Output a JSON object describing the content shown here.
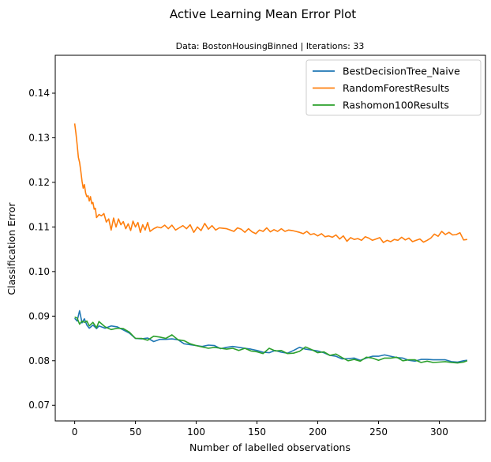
{
  "chart_data": {
    "type": "line",
    "title": "Active Learning Mean Error Plot",
    "subtitle": "Data: BostonHousingBinned | Iterations: 33",
    "xlabel": "Number of labelled observations",
    "ylabel": "Classification Error",
    "xlim": [
      -16,
      338
    ],
    "ylim": [
      0.0665,
      0.1485
    ],
    "xticks": [
      0,
      50,
      100,
      150,
      200,
      250,
      300
    ],
    "yticks": [
      0.07,
      0.08,
      0.09,
      0.1,
      0.11,
      0.12,
      0.13,
      0.14
    ],
    "ytick_labels": [
      "0.07",
      "0.08",
      "0.09",
      "0.10",
      "0.11",
      "0.12",
      "0.13",
      "0.14"
    ],
    "grid": false,
    "legend_position": "top-right",
    "series": [
      {
        "name": "BestDecisionTree_Naive",
        "color": "#1f77b4",
        "x": [
          0,
          2,
          4,
          6,
          8,
          10,
          12,
          15,
          18,
          20,
          25,
          30,
          35,
          40,
          45,
          50,
          55,
          60,
          65,
          70,
          75,
          80,
          85,
          90,
          95,
          100,
          105,
          110,
          115,
          120,
          125,
          130,
          135,
          140,
          145,
          150,
          155,
          160,
          165,
          170,
          175,
          180,
          185,
          190,
          195,
          200,
          205,
          210,
          215,
          220,
          225,
          230,
          235,
          240,
          245,
          250,
          255,
          260,
          265,
          270,
          275,
          280,
          285,
          290,
          295,
          300,
          305,
          310,
          315,
          320,
          323
        ],
        "y": [
          0.0895,
          0.0889,
          0.0912,
          0.0885,
          0.0894,
          0.088,
          0.0873,
          0.088,
          0.0872,
          0.0878,
          0.0873,
          0.0878,
          0.0876,
          0.0869,
          0.0862,
          0.085,
          0.0849,
          0.0851,
          0.0843,
          0.0848,
          0.0848,
          0.0849,
          0.0847,
          0.0838,
          0.0836,
          0.0834,
          0.0832,
          0.0835,
          0.0834,
          0.0827,
          0.083,
          0.0832,
          0.083,
          0.0828,
          0.0826,
          0.0823,
          0.0819,
          0.0818,
          0.0823,
          0.0819,
          0.0817,
          0.0823,
          0.083,
          0.0826,
          0.0824,
          0.0822,
          0.0818,
          0.0812,
          0.081,
          0.0804,
          0.0805,
          0.0806,
          0.0801,
          0.0806,
          0.081,
          0.081,
          0.0813,
          0.081,
          0.0807,
          0.0806,
          0.0801,
          0.0799,
          0.0803,
          0.0803,
          0.0802,
          0.0802,
          0.0802,
          0.0798,
          0.0797,
          0.08,
          0.0801
        ]
      },
      {
        "name": "RandomForestResults",
        "color": "#ff7f0e",
        "x": [
          0,
          1,
          2,
          3,
          4,
          5,
          6,
          7,
          8,
          9,
          10,
          11,
          12,
          13,
          14,
          15,
          16,
          17,
          18,
          20,
          22,
          24,
          26,
          28,
          30,
          32,
          34,
          36,
          38,
          40,
          42,
          44,
          46,
          48,
          50,
          52,
          54,
          56,
          58,
          60,
          62,
          65,
          68,
          71,
          74,
          77,
          80,
          83,
          86,
          89,
          92,
          95,
          98,
          101,
          104,
          107,
          110,
          113,
          116,
          119,
          122,
          125,
          128,
          131,
          134,
          137,
          140,
          143,
          146,
          149,
          152,
          155,
          158,
          161,
          164,
          167,
          170,
          173,
          176,
          179,
          182,
          185,
          188,
          191,
          194,
          197,
          200,
          203,
          206,
          209,
          212,
          215,
          218,
          221,
          224,
          227,
          230,
          233,
          236,
          239,
          242,
          245,
          248,
          251,
          254,
          257,
          260,
          263,
          266,
          269,
          272,
          275,
          278,
          281,
          284,
          287,
          290,
          293,
          296,
          299,
          302,
          305,
          308,
          311,
          314,
          317,
          320,
          323
        ],
        "y": [
          0.1332,
          0.131,
          0.1285,
          0.1256,
          0.1245,
          0.1226,
          0.1203,
          0.1187,
          0.1195,
          0.1176,
          0.1168,
          0.117,
          0.1158,
          0.1168,
          0.1152,
          0.1155,
          0.114,
          0.1142,
          0.1121,
          0.1128,
          0.1125,
          0.113,
          0.1111,
          0.1118,
          0.1093,
          0.112,
          0.11,
          0.1118,
          0.1105,
          0.1112,
          0.1096,
          0.1107,
          0.1092,
          0.1113,
          0.11,
          0.111,
          0.1088,
          0.1105,
          0.1093,
          0.111,
          0.109,
          0.1096,
          0.11,
          0.1098,
          0.1104,
          0.1096,
          0.1104,
          0.1093,
          0.1098,
          0.1103,
          0.1096,
          0.1105,
          0.1088,
          0.11,
          0.1092,
          0.1108,
          0.1095,
          0.1103,
          0.1093,
          0.1098,
          0.1097,
          0.1096,
          0.1093,
          0.109,
          0.1098,
          0.1095,
          0.1088,
          0.1096,
          0.1089,
          0.1085,
          0.1093,
          0.109,
          0.1098,
          0.1089,
          0.1094,
          0.109,
          0.1096,
          0.109,
          0.1093,
          0.1092,
          0.109,
          0.1088,
          0.1085,
          0.109,
          0.1083,
          0.1085,
          0.108,
          0.1085,
          0.1078,
          0.108,
          0.1077,
          0.1082,
          0.1073,
          0.108,
          0.1068,
          0.1076,
          0.1072,
          0.1074,
          0.107,
          0.1078,
          0.1075,
          0.107,
          0.1073,
          0.1076,
          0.1065,
          0.107,
          0.1067,
          0.1072,
          0.107,
          0.1077,
          0.1071,
          0.1075,
          0.1067,
          0.107,
          0.1073,
          0.1066,
          0.107,
          0.1075,
          0.1084,
          0.1079,
          0.109,
          0.1083,
          0.1088,
          0.1082,
          0.1083,
          0.1087,
          0.1071,
          0.1072
        ]
      },
      {
        "name": "Rashomon100Results",
        "color": "#2ca02c",
        "x": [
          0,
          2,
          4,
          6,
          8,
          10,
          12,
          15,
          18,
          20,
          25,
          30,
          35,
          40,
          45,
          50,
          55,
          60,
          65,
          70,
          75,
          80,
          85,
          90,
          95,
          100,
          105,
          110,
          115,
          120,
          125,
          130,
          135,
          140,
          145,
          150,
          155,
          160,
          165,
          170,
          175,
          180,
          185,
          190,
          195,
          200,
          205,
          210,
          215,
          220,
          225,
          230,
          235,
          240,
          245,
          250,
          255,
          260,
          265,
          270,
          275,
          280,
          285,
          290,
          295,
          300,
          305,
          310,
          315,
          320,
          323
        ],
        "y": [
          0.0898,
          0.0896,
          0.0882,
          0.0889,
          0.0886,
          0.0889,
          0.0878,
          0.0886,
          0.0874,
          0.0888,
          0.0876,
          0.087,
          0.0873,
          0.0872,
          0.0864,
          0.085,
          0.085,
          0.0846,
          0.0855,
          0.0853,
          0.085,
          0.0858,
          0.0847,
          0.0845,
          0.0838,
          0.0834,
          0.0831,
          0.0828,
          0.083,
          0.0828,
          0.0826,
          0.0828,
          0.0823,
          0.0828,
          0.0822,
          0.082,
          0.0816,
          0.0828,
          0.0822,
          0.0823,
          0.0816,
          0.0817,
          0.0821,
          0.0831,
          0.0825,
          0.0818,
          0.082,
          0.0812,
          0.0815,
          0.0807,
          0.08,
          0.0803,
          0.0799,
          0.0808,
          0.0806,
          0.0801,
          0.0806,
          0.0806,
          0.0808,
          0.08,
          0.0802,
          0.0802,
          0.0796,
          0.0799,
          0.0796,
          0.0797,
          0.0798,
          0.0796,
          0.0795,
          0.0797,
          0.08
        ]
      }
    ]
  }
}
